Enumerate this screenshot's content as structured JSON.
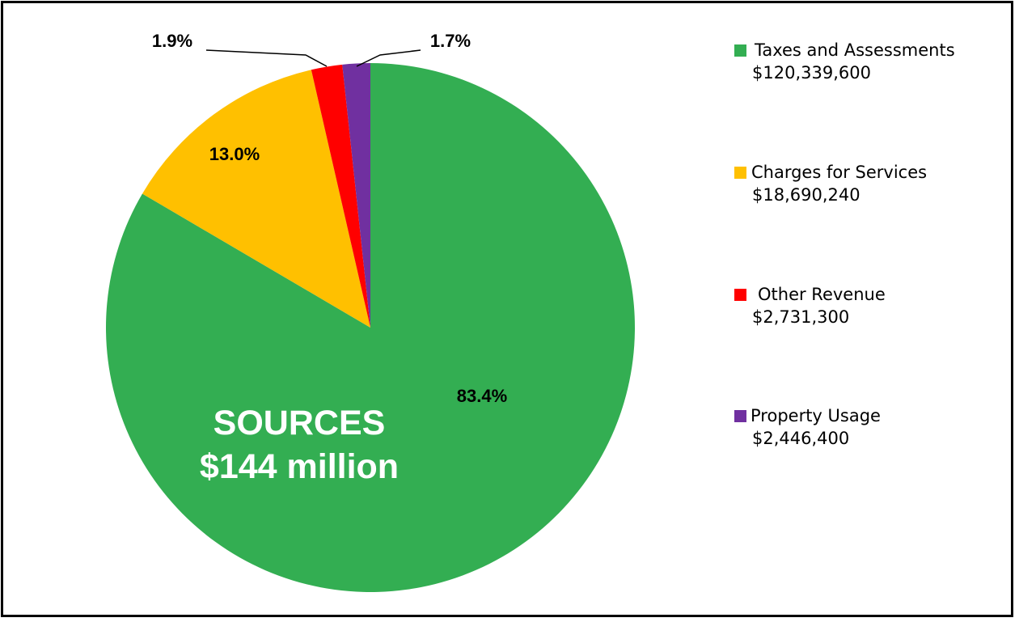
{
  "chart_data": {
    "type": "pie",
    "slices": [
      {
        "name": "Taxes and Assessments",
        "amount": "$120,339,600",
        "value": 120339600,
        "pct_label": "83.4%",
        "color": "#33ae52"
      },
      {
        "name": "Charges for Services",
        "amount": "$18,690,240",
        "value": 18690240,
        "pct_label": "13.0%",
        "color": "#ffc000"
      },
      {
        "name": "Other Revenue",
        "amount": "$2,731,300",
        "value": 2731300,
        "pct_label": "1.9%",
        "color": "#ff0000"
      },
      {
        "name": "Property Usage",
        "amount": "$2,446,400",
        "value": 2446400,
        "pct_label": "1.7%",
        "color": "#7030a0"
      }
    ],
    "center_label": {
      "line1": "SOURCES",
      "line2": "$144 million"
    },
    "legend_position": "right"
  }
}
